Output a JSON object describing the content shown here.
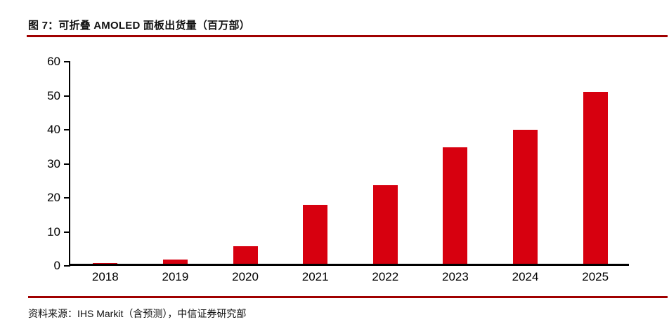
{
  "figure": {
    "title": "图 7：可折叠 AMOLED 面板出货量（百万部）",
    "source": "资料来源：IHS Markit（含预测），中信证券研究部"
  },
  "colors": {
    "bar": "#d7000f",
    "rule": "#a00000",
    "axis": "#000000",
    "text": "#111111"
  },
  "chart_data": {
    "type": "bar",
    "title": "可折叠 AMOLED 面板出货量（百万部）",
    "categories": [
      "2018",
      "2019",
      "2020",
      "2021",
      "2022",
      "2023",
      "2024",
      "2025"
    ],
    "values": [
      0.1,
      1.2,
      5.1,
      17.4,
      23.0,
      34.2,
      39.4,
      50.5
    ],
    "xlabel": "",
    "ylabel": "",
    "ylim": [
      0,
      60
    ],
    "yticks": [
      0,
      10,
      20,
      30,
      40,
      50,
      60
    ],
    "grid": false,
    "legend": "none"
  }
}
